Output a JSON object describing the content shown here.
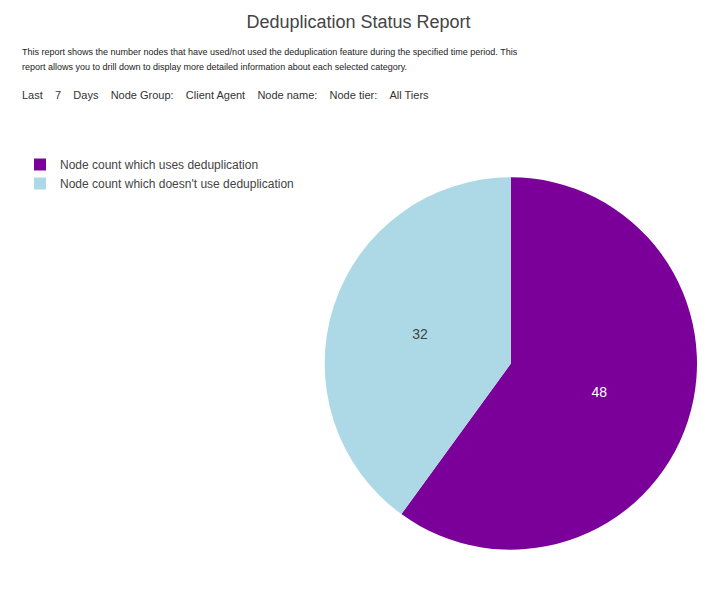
{
  "chart_data": {
    "type": "pie",
    "title": "Deduplication Status Report",
    "subtitle": [
      "This report shows the number nodes that have used/not used the deduplication feature during the specified time period. This",
      "report allows you to drill down to display more detailed information about each selected category."
    ],
    "annotations": [
      "Last",
      "7",
      "Days",
      "Node Group:",
      "Client Agent",
      "Node name:",
      "Node tier:",
      "All Tiers"
    ],
    "categories": [
      "Node count which uses deduplication",
      "Node count which doesn't use deduplication"
    ],
    "values": [
      48,
      32
    ],
    "colors": [
      "#7B0099",
      "#ADD8E6"
    ],
    "data_labels": true,
    "legend": "top-left"
  }
}
